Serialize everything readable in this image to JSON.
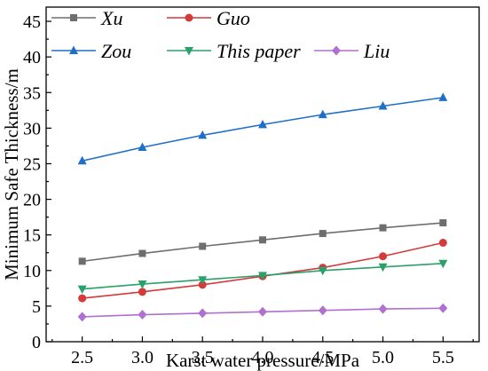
{
  "chart_data": {
    "type": "line",
    "xlabel": "Karst water pressure/MPa",
    "ylabel": "Minimum Safe Thickness/m",
    "x": [
      2.5,
      3.0,
      3.5,
      4.0,
      4.5,
      5.0,
      5.5
    ],
    "xlim": [
      2.2,
      5.8
    ],
    "ylim": [
      0,
      47
    ],
    "xticks": [
      "2.5",
      "3.0",
      "3.5",
      "4.0",
      "4.5",
      "5.0",
      "5.5"
    ],
    "yticks": [
      "0",
      "5",
      "10",
      "15",
      "20",
      "25",
      "30",
      "35",
      "40",
      "45"
    ],
    "grid": false,
    "legend_position": "top-left",
    "series": [
      {
        "name": "Xu",
        "color": "#6e6e6e",
        "marker": "square",
        "values": [
          11.3,
          12.4,
          13.4,
          14.3,
          15.2,
          16.0,
          16.7
        ]
      },
      {
        "name": "Guo",
        "color": "#d43a3a",
        "marker": "circle",
        "values": [
          6.1,
          7.0,
          8.0,
          9.2,
          10.4,
          12.0,
          13.9
        ]
      },
      {
        "name": "Zou",
        "color": "#1f6fc9",
        "marker": "triangle-up",
        "values": [
          25.4,
          27.3,
          29.0,
          30.5,
          31.9,
          33.1,
          34.3
        ]
      },
      {
        "name": "This paper",
        "color": "#2aa06b",
        "marker": "triangle-down",
        "values": [
          7.4,
          8.1,
          8.7,
          9.3,
          10.0,
          10.5,
          11.0
        ]
      },
      {
        "name": "Liu",
        "color": "#b070d0",
        "marker": "diamond",
        "values": [
          3.5,
          3.8,
          4.0,
          4.2,
          4.4,
          4.6,
          4.7
        ]
      }
    ]
  }
}
